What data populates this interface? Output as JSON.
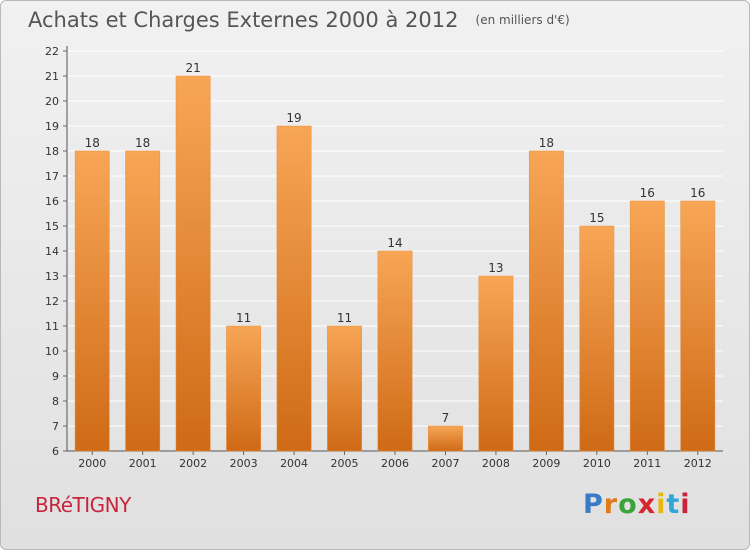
{
  "title": "Achats et Charges Externes 2000 à 2012",
  "unit_note": "(en milliers d'€)",
  "location": "BRéTIGNY",
  "brand": {
    "text": "Proxiti",
    "letter_colors": [
      "#3a7bc8",
      "#e07a1a",
      "#3aa33a",
      "#d8262e",
      "#e8b80e",
      "#2fa8d8",
      "#c8243c"
    ]
  },
  "colors": {
    "bar_light": "#f7a656",
    "bar_dark": "#cf6a16",
    "grid": "#ffffff",
    "axis_text": "#333333"
  },
  "chart_data": {
    "type": "bar",
    "title": "Achats et Charges Externes 2000 à 2012",
    "subtitle": "(en milliers d'€)",
    "categories": [
      "2000",
      "2001",
      "2002",
      "2003",
      "2004",
      "2005",
      "2006",
      "2007",
      "2008",
      "2009",
      "2010",
      "2011",
      "2012"
    ],
    "values": [
      18,
      18,
      21,
      11,
      19,
      11,
      14,
      7,
      13,
      18,
      15,
      16,
      16
    ],
    "ylim": [
      6,
      22
    ],
    "yticks": [
      6,
      7,
      8,
      9,
      10,
      11,
      12,
      13,
      14,
      15,
      16,
      17,
      18,
      19,
      20,
      21,
      22
    ],
    "grid": true,
    "data_labels": true
  }
}
